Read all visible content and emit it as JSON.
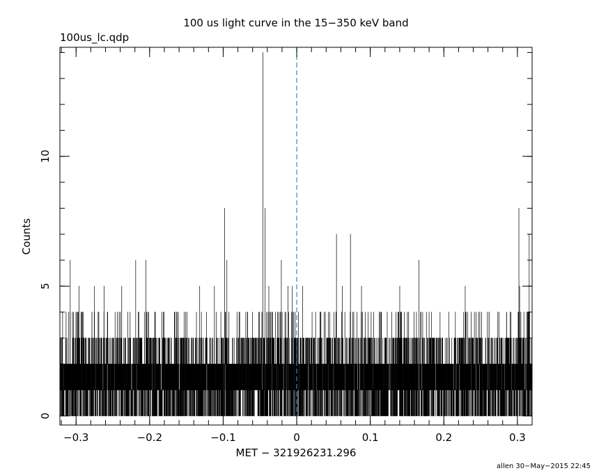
{
  "chart_data": {
    "type": "line",
    "style": "histogram-step",
    "title": "100 us light curve in the 15−350 keV band",
    "file_label": "100us_lc.qdp",
    "xlabel": "MET − 321926231.296",
    "ylabel": "Counts",
    "footer": "allen 30−May−2015 22:45",
    "xlim": [
      -0.322,
      0.32
    ],
    "ylim": [
      -0.35,
      14.2
    ],
    "x_ticks_major": [
      -0.3,
      -0.2,
      -0.1,
      0,
      0.1,
      0.2,
      0.3
    ],
    "x_tick_labels": [
      "−0.3",
      "−0.2",
      "−0.1",
      "0",
      "0.1",
      "0.2",
      "0.3"
    ],
    "x_minor_step": 0.02,
    "y_ticks_major": [
      0,
      5,
      10
    ],
    "y_tick_labels": [
      "0",
      "5",
      "10"
    ],
    "y_minor_step": 1,
    "bin_width": 0.0001,
    "trigger_line": {
      "x": 0,
      "color": "#2f8fbf",
      "style": "dashed"
    },
    "colors": {
      "data": "#000000",
      "axes": "#000000"
    },
    "series": [
      {
        "values_description_note": "",
        "background_levels": [
          0,
          1,
          2,
          3
        ],
        "peaks": [
          {
            "x": -0.046,
            "y": 14
          },
          {
            "x": -0.098,
            "y": 8
          },
          {
            "x": -0.043,
            "y": 8
          },
          {
            "x": 0.302,
            "y": 8
          },
          {
            "x": 0.054,
            "y": 7
          },
          {
            "x": 0.073,
            "y": 7
          },
          {
            "x": 0.316,
            "y": 7
          },
          {
            "x": -0.308,
            "y": 6
          },
          {
            "x": -0.219,
            "y": 6
          },
          {
            "x": -0.205,
            "y": 6
          },
          {
            "x": -0.095,
            "y": 6
          },
          {
            "x": -0.021,
            "y": 6
          },
          {
            "x": 0.166,
            "y": 6
          },
          {
            "x": -0.296,
            "y": 5
          },
          {
            "x": -0.275,
            "y": 5
          },
          {
            "x": -0.262,
            "y": 5
          },
          {
            "x": -0.238,
            "y": 5
          },
          {
            "x": -0.132,
            "y": 5
          },
          {
            "x": -0.112,
            "y": 5
          },
          {
            "x": -0.038,
            "y": 5
          },
          {
            "x": -0.012,
            "y": 5
          },
          {
            "x": -0.006,
            "y": 5
          },
          {
            "x": 0.008,
            "y": 5
          },
          {
            "x": 0.062,
            "y": 5
          },
          {
            "x": 0.088,
            "y": 5
          },
          {
            "x": 0.14,
            "y": 5
          },
          {
            "x": 0.229,
            "y": 5
          },
          {
            "x": 0.303,
            "y": 5
          }
        ],
        "dips": [
          {
            "x": -0.099,
            "y": 0
          },
          {
            "x": 0.035,
            "y": 0
          },
          {
            "x": 0.292,
            "y": 0
          }
        ]
      }
    ]
  }
}
